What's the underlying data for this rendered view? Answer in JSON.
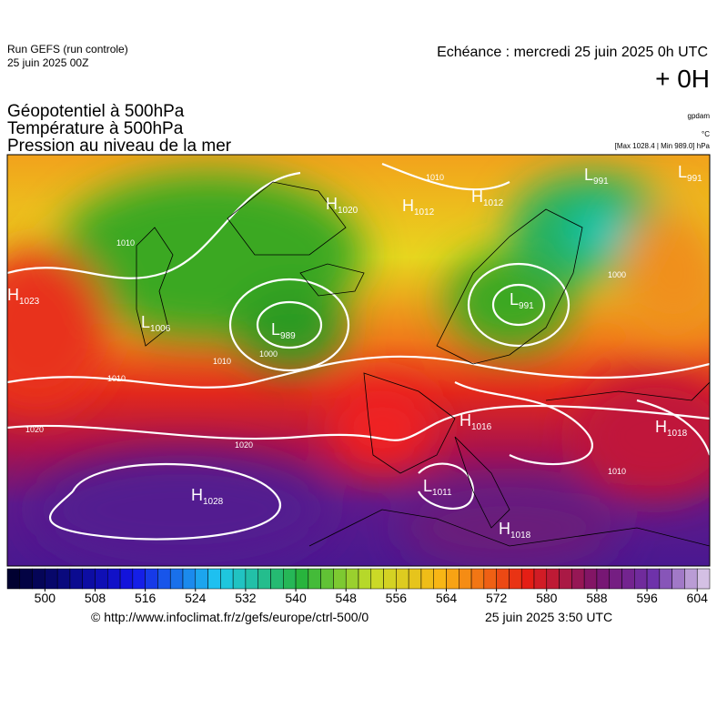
{
  "header": {
    "run": "Run GEFS (run controle)",
    "run_date": "25 juin 2025 00Z",
    "echeance": "Echéance : mercredi 25 juin 2025 0h UTC",
    "offset": "+ 0H"
  },
  "titles": [
    "Géopotentiel à 500hPa",
    "Température à 500hPa",
    "Pression au niveau de la mer"
  ],
  "units": [
    "gpdam",
    "°C",
    "[Max 1028.4 | Min 989.0] hPa"
  ],
  "centers": [
    {
      "letter": "H",
      "value": "1020"
    },
    {
      "letter": "H",
      "value": "1012"
    },
    {
      "letter": "H",
      "value": "1012"
    },
    {
      "letter": "L",
      "value": "991"
    },
    {
      "letter": "L",
      "value": "991"
    },
    {
      "letter": "H",
      "value": "1023"
    },
    {
      "letter": "L",
      "value": "1006"
    },
    {
      "letter": "L",
      "value": "989"
    },
    {
      "letter": "L",
      "value": "991"
    },
    {
      "letter": "H",
      "value": "1016"
    },
    {
      "letter": "H",
      "value": "1018"
    },
    {
      "letter": "L",
      "value": "1011"
    },
    {
      "letter": "H",
      "value": "1028"
    },
    {
      "letter": "H",
      "value": "1018"
    }
  ],
  "isobar_labels": [
    "1010",
    "1010",
    "1000",
    "1010",
    "1010",
    "1020",
    "1020",
    "1010",
    "1000"
  ],
  "colorbar": {
    "min": 494,
    "max": 606,
    "step": 2,
    "ticks": [
      500,
      508,
      516,
      524,
      532,
      540,
      548,
      556,
      564,
      572,
      580,
      588,
      596,
      604
    ]
  },
  "footer": {
    "url": "© http://www.infoclimat.fr/z/gefs/europe/ctrl-500/0",
    "date": "25 juin 2025  3:50 UTC"
  }
}
